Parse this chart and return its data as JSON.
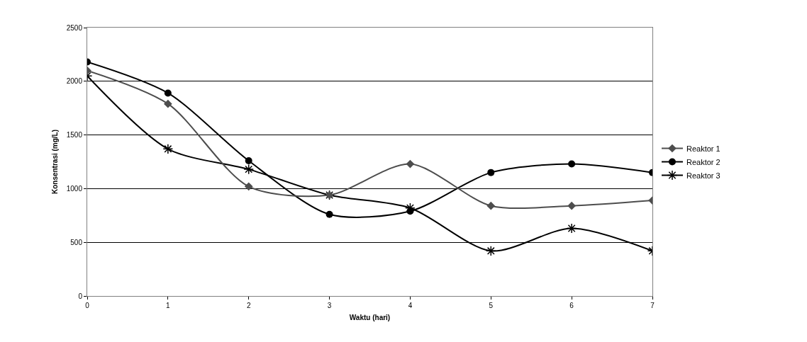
{
  "chart_data": {
    "type": "line",
    "xlabel": "Waktu (hari)",
    "ylabel": "Konsentrasi (mg/L)",
    "x": [
      0,
      1,
      2,
      3,
      4,
      5,
      6,
      7
    ],
    "xlim": [
      0,
      7
    ],
    "xticks": [
      0,
      1,
      2,
      3,
      4,
      5,
      6,
      7
    ],
    "ylim": [
      0,
      2500
    ],
    "yticks": [
      0,
      500,
      1000,
      1500,
      2000,
      2500
    ],
    "grid": "y",
    "legend": "right",
    "line_style": "solid",
    "series": [
      {
        "name": "Reaktor 1",
        "color": "#4d4d4d",
        "marker": "diamond",
        "values": [
          2100,
          1790,
          1020,
          940,
          1230,
          840,
          840,
          890
        ]
      },
      {
        "name": "Reaktor 2",
        "color": "#000000",
        "marker": "circle",
        "values": [
          2180,
          1890,
          1260,
          760,
          790,
          1150,
          1230,
          1150
        ]
      },
      {
        "name": "Reaktor 3",
        "color": "#000000",
        "marker": "cross",
        "values": [
          2050,
          1370,
          1180,
          940,
          820,
          420,
          630,
          420
        ]
      }
    ]
  }
}
